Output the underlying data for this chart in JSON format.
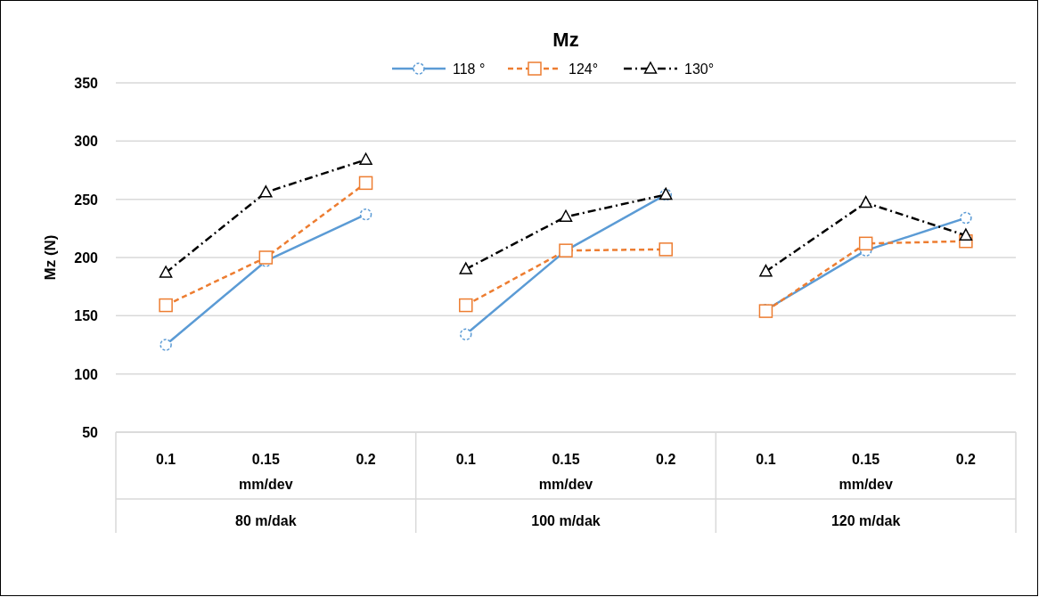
{
  "chart_data": {
    "type": "line",
    "title": "Mz",
    "ylabel": "Mz (N)",
    "xlabel": "mm/dev",
    "categories": [
      "0.1",
      "0.15",
      "0.2",
      "0.1",
      "0.15",
      "0.2",
      "0.1",
      "0.15",
      "0.2"
    ],
    "annotations": [
      "80 m/dak",
      "100 m/dak",
      "120 m/dak"
    ],
    "series": [
      {
        "name": "118 °",
        "color": "#5b9bd5",
        "marker": "circle",
        "line_style": "solid",
        "values": [
          125,
          197,
          237,
          134,
          206,
          254,
          155,
          206,
          234
        ]
      },
      {
        "name": "124°",
        "color": "#ed7d31",
        "marker": "square",
        "line_style": "dashed",
        "values": [
          159,
          200,
          264,
          159,
          206,
          207,
          154,
          212,
          214
        ]
      },
      {
        "name": "130°",
        "color": "#000000",
        "marker": "triangle",
        "line_style": "dotted",
        "values": [
          187,
          256,
          284,
          190,
          235,
          254,
          188,
          247,
          219
        ]
      }
    ],
    "ylim": [
      50,
      350
    ],
    "yticks": [
      50,
      100,
      150,
      200,
      250,
      300,
      350
    ],
    "grid": "y",
    "legend": "top"
  }
}
